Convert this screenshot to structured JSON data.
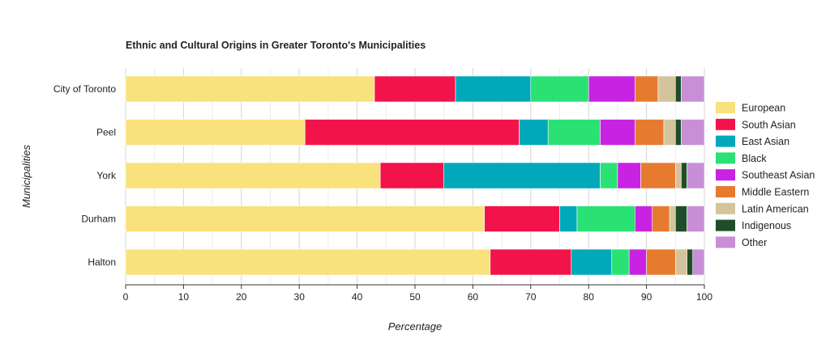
{
  "chart_data": {
    "type": "bar",
    "orientation": "horizontal",
    "stacked": true,
    "title": "Ethnic and Cultural Origins in Greater Toronto's Municipalities",
    "xlabel": "Percentage",
    "ylabel": "Municipalities",
    "xlim": [
      0,
      100
    ],
    "x_ticks": [
      "0",
      "10",
      "20",
      "30",
      "40",
      "50",
      "60",
      "70",
      "80",
      "90",
      "100"
    ],
    "grid": true,
    "legend_position": "right",
    "categories": [
      "City of Toronto",
      "Peel",
      "York",
      "Durham",
      "Halton"
    ],
    "series": [
      {
        "name": "European",
        "color": "#f9e27d",
        "values": [
          43,
          31,
          44,
          62,
          63
        ]
      },
      {
        "name": "South Asian",
        "color": "#f2134a",
        "values": [
          14,
          37,
          11,
          13,
          14
        ]
      },
      {
        "name": "East Asian",
        "color": "#00a9ba",
        "values": [
          13,
          5,
          27,
          3,
          7
        ]
      },
      {
        "name": "Black",
        "color": "#2ae174",
        "values": [
          10,
          9,
          3,
          10,
          3
        ]
      },
      {
        "name": "Southeast Asian",
        "color": "#c823e2",
        "values": [
          8,
          6,
          4,
          3,
          3
        ]
      },
      {
        "name": "Middle Eastern",
        "color": "#e67b30",
        "values": [
          4,
          5,
          6,
          3,
          5
        ]
      },
      {
        "name": "Latin American",
        "color": "#d4c49b",
        "values": [
          3,
          2,
          1,
          1,
          2
        ]
      },
      {
        "name": "Indigenous",
        "color": "#1f4d2a",
        "values": [
          1,
          1,
          1,
          2,
          1
        ]
      },
      {
        "name": "Other",
        "color": "#c88fd6",
        "values": [
          4,
          4,
          3,
          3,
          2
        ]
      }
    ]
  }
}
